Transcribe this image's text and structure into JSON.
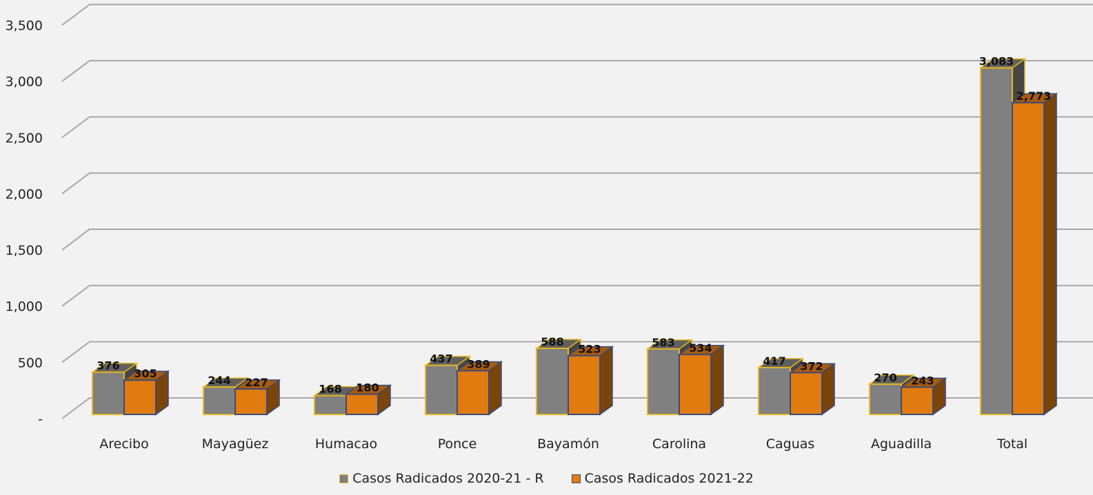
{
  "chart_data": {
    "type": "bar",
    "categories": [
      "Arecibo",
      "Mayagüez",
      "Humacao",
      "Ponce",
      "Bayamón",
      "Carolina",
      "Caguas",
      "Aguadilla",
      "Total"
    ],
    "series": [
      {
        "name": "Casos Radicados 2020-21 - R",
        "values": [
          376,
          244,
          168,
          437,
          588,
          583,
          417,
          270,
          3083
        ],
        "color": "#808080",
        "edge": "#e8b820"
      },
      {
        "name": "Casos Radicados 2021-22",
        "values": [
          305,
          227,
          180,
          389,
          523,
          534,
          372,
          243,
          2773
        ],
        "color": "#e07b10",
        "edge": "#3a4a7a"
      }
    ],
    "y_ticks": [
      "-",
      "500",
      "1,000",
      "1,500",
      "2,000",
      "2,500",
      "3,000",
      "3,500"
    ],
    "data_labels_1": [
      "376",
      "244",
      "168",
      "437",
      "588",
      "583",
      "417",
      "270",
      "3,083"
    ],
    "data_labels_2": [
      "305",
      "227",
      "180",
      "389",
      "523",
      "534",
      "372",
      "243",
      "2,773"
    ],
    "ylim": [
      0,
      3500
    ],
    "grid": true,
    "legend": "bottom"
  }
}
